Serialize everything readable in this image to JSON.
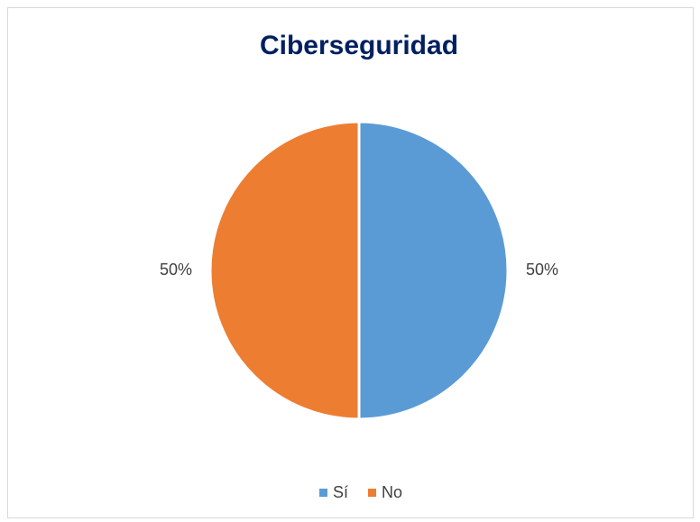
{
  "chart_data": {
    "type": "pie",
    "title": "Ciberseguridad",
    "categories": [
      "Sí",
      "No"
    ],
    "values": [
      50,
      50
    ],
    "value_labels": [
      "50%",
      "50%"
    ],
    "colors": [
      "#5b9bd5",
      "#ed7d31"
    ],
    "legend": "bottom"
  }
}
